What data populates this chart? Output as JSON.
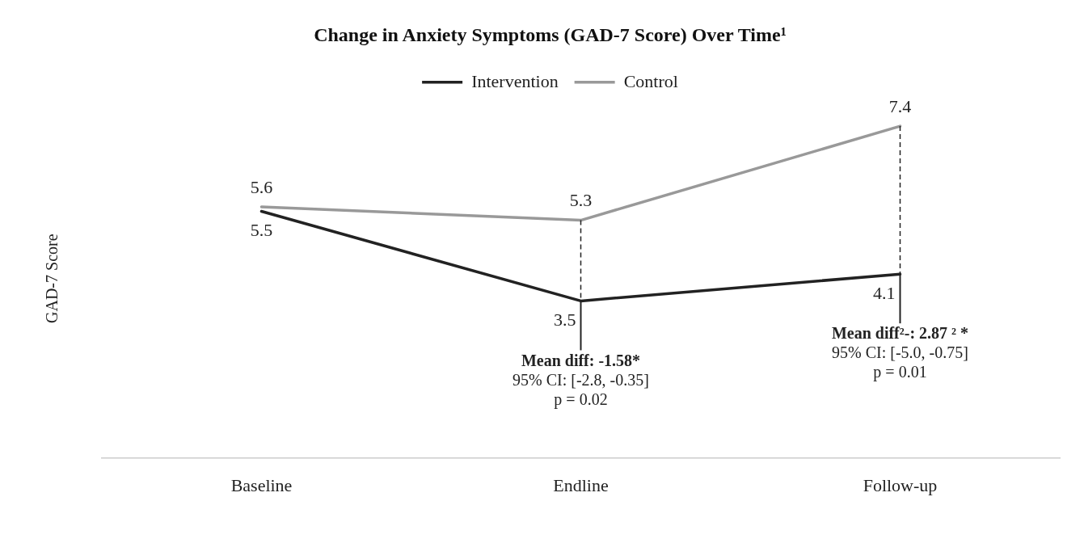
{
  "chart_data": {
    "type": "line",
    "title": "Change in Anxiety Symptoms (GAD-7 Score) Over Time¹",
    "ylabel": "GAD-7 Score",
    "categories": [
      "Baseline",
      "Endline",
      "Follow-up"
    ],
    "series": [
      {
        "name": "Intervention",
        "color": "#222222",
        "values": [
          5.5,
          3.5,
          4.1
        ]
      },
      {
        "name": "Control",
        "color": "#999999",
        "values": [
          5.6,
          5.3,
          7.4
        ]
      }
    ],
    "data_labels": true,
    "legend": "top",
    "marker": "none",
    "line_style": "solid",
    "tick_labels": "x",
    "annotations": [
      "Mean diff: -1.58*\n95% CI: [-2.8, -0.35]\np = 0.02",
      "Mean diff²-: 2.87 ² *\n95% CI: [-5.0, -0.75]\np = 0.01"
    ]
  }
}
